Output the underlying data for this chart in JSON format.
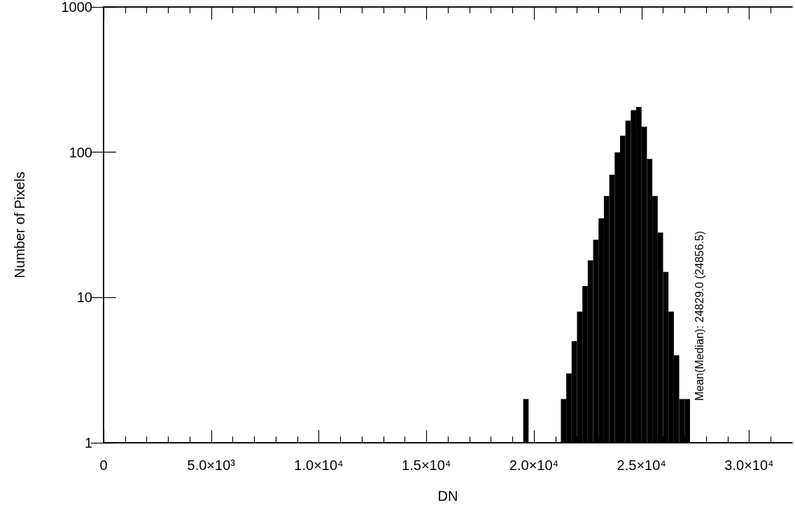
{
  "chart_data": {
    "type": "histogram",
    "xlabel": "DN",
    "ylabel": "Number of Pixels",
    "bins": [
      19500,
      19750,
      20000,
      20250,
      20500,
      20750,
      21000,
      21250,
      21500,
      21750,
      22000,
      22250,
      22500,
      22750,
      23000,
      23250,
      23500,
      23750,
      24000,
      24250,
      24500,
      24750,
      25000,
      25250,
      25500,
      25750,
      26000,
      26250,
      26500,
      26750,
      27000,
      27250
    ],
    "values": [
      2,
      null,
      null,
      null,
      null,
      null,
      null,
      2,
      3,
      5,
      8,
      12,
      18,
      25,
      35,
      50,
      70,
      100,
      130,
      165,
      195,
      205,
      150,
      90,
      50,
      28,
      15,
      8,
      4,
      2,
      2
    ],
    "color": "#000000",
    "xlim": [
      0,
      32000
    ],
    "xticks": [
      {
        "value": 0,
        "label": "0"
      },
      {
        "value": 1000,
        "label": null
      },
      {
        "value": 2000,
        "label": null
      },
      {
        "value": 3000,
        "label": null
      },
      {
        "value": 4000,
        "label": null
      },
      {
        "value": 5000,
        "label": "5.0×10³"
      },
      {
        "value": 6000,
        "label": null
      },
      {
        "value": 7000,
        "label": null
      },
      {
        "value": 8000,
        "label": null
      },
      {
        "value": 9000,
        "label": null
      },
      {
        "value": 10000,
        "label": "1.0×10⁴"
      },
      {
        "value": 11000,
        "label": null
      },
      {
        "value": 12000,
        "label": null
      },
      {
        "value": 13000,
        "label": null
      },
      {
        "value": 14000,
        "label": null
      },
      {
        "value": 15000,
        "label": "1.5×10⁴"
      },
      {
        "value": 16000,
        "label": null
      },
      {
        "value": 17000,
        "label": null
      },
      {
        "value": 18000,
        "label": null
      },
      {
        "value": 19000,
        "label": null
      },
      {
        "value": 20000,
        "label": "2.0×10⁴"
      },
      {
        "value": 21000,
        "label": null
      },
      {
        "value": 22000,
        "label": null
      },
      {
        "value": 23000,
        "label": null
      },
      {
        "value": 24000,
        "label": null
      },
      {
        "value": 25000,
        "label": "2.5×10⁴"
      },
      {
        "value": 26000,
        "label": null
      },
      {
        "value": 27000,
        "label": null
      },
      {
        "value": 28000,
        "label": null
      },
      {
        "value": 29000,
        "label": null
      },
      {
        "value": 30000,
        "label": "3.0×10⁴"
      },
      {
        "value": 31000,
        "label": null
      }
    ],
    "ylim": [
      1,
      1000
    ],
    "yticks": [
      1,
      10,
      100,
      1000
    ],
    "log": "y",
    "annotations": [
      "Mean(Median): 24829.0 (24856.5)"
    ]
  }
}
